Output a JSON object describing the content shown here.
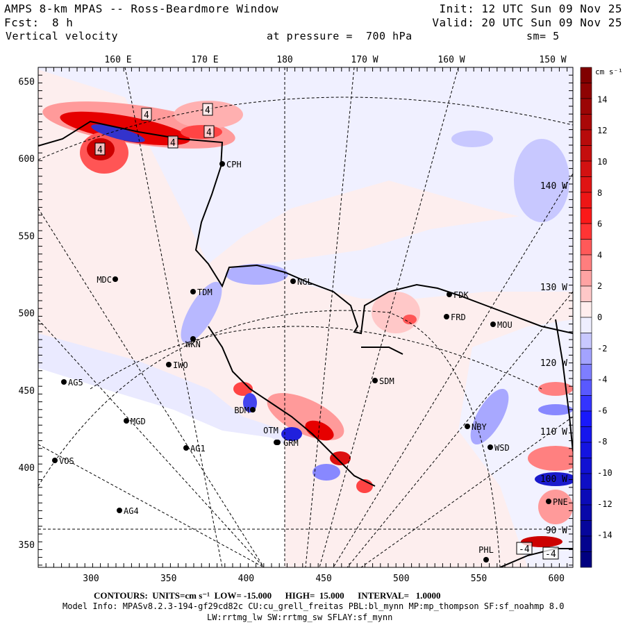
{
  "header": {
    "title": "AMPS 8-km MPAS -- Ross-Beardmore Window",
    "init": "Init: 12 UTC Sun 09 Nov 25",
    "fcst_label": "Fcst:",
    "fcst_value": "8 h",
    "valid": "Valid: 20 UTC Sun 09 Nov 25",
    "field": "Vertical velocity",
    "level": "at pressure =  700 hPa",
    "smoothing": "sm= 5"
  },
  "map": {
    "top_meridian_labels": [
      "160 E",
      "170 E",
      "180",
      "170 W",
      "160 W",
      "150 W"
    ],
    "right_meridian_labels": [
      "140 W",
      "130 W",
      "120 W",
      "110 W",
      "100 W",
      "90 W"
    ],
    "x_ticks": [
      "300",
      "350",
      "400",
      "450",
      "500",
      "550",
      "600"
    ],
    "y_ticks": [
      "650",
      "600",
      "550",
      "500",
      "450",
      "400",
      "350"
    ],
    "stations": [
      "CPH",
      "NGL",
      "MDC",
      "TDM",
      "FDK",
      "FRD",
      "MOU",
      "WKN",
      "IWO",
      "SDM",
      "AG5",
      "MGD",
      "BDM",
      "OTM",
      "GRM",
      "AG1",
      "NBY",
      "WSD",
      "VOS",
      "AG4",
      "PNE",
      "PHL"
    ],
    "contour_labels": [
      "4",
      "4",
      "4",
      "4",
      "4",
      "-4",
      "-4"
    ]
  },
  "colorbar": {
    "units": "cm s⁻¹",
    "labels": [
      "14",
      "12",
      "10",
      "8",
      "6",
      "4",
      "2",
      "0",
      "-2",
      "-4",
      "-6",
      "-8",
      "-10",
      "-12",
      "-14"
    ],
    "colors": {
      "max": "#800000",
      "pos": "#ff1a1a",
      "zero": "#ffffff",
      "neg": "#1a1aff",
      "min": "#000080"
    }
  },
  "footer": {
    "contours": "CONTOURS:  UNITS=cm s⁻¹  LOW= -15.000      HIGH=  15.000      INTERVAL=   1.0000",
    "model_info": "Model Info: MPASv8.2.3-194-gf29cd82c CU:cu_grell_freitas PBL:bl_mynn MP:mp_thompson SF:sf_noahmp 8.0",
    "model_info2": "LW:rrtmg_lw SW:rrtmg_sw SFLAY:sf_mynn"
  }
}
